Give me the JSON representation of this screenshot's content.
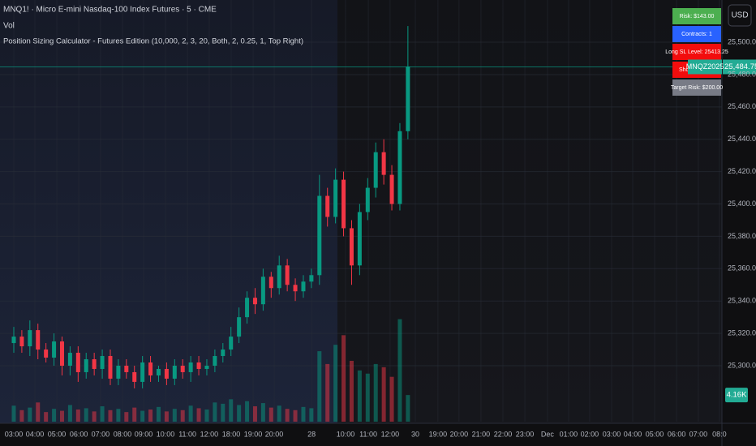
{
  "chart_data": {
    "type": "candlestick",
    "title": "MNQ1! · Micro E-mini Nasdaq-100 Index Futures · 5 · CME",
    "volume_label": "Vol",
    "indicator_label": "Position Sizing Calculator - Futures Edition (10,000, 2, 3, 20, Both, 2, 0.25, 1, Top Right)",
    "currency": "USD",
    "up_color": "#089981",
    "down_color": "#f23645",
    "grid": true,
    "x": [
      0,
      0.37,
      0.74,
      1.11,
      1.48,
      1.85,
      2.22,
      2.59,
      2.96,
      3.33,
      3.7,
      4.07,
      4.44,
      4.81,
      5.18,
      5.55,
      5.92,
      6.29,
      6.66,
      7.03,
      7.4,
      7.77,
      8.14,
      8.51,
      8.88,
      9.25,
      9.62,
      9.99,
      10.36,
      10.73,
      11.1,
      11.47,
      11.84,
      12.21,
      12.58,
      12.95,
      13.32,
      13.69,
      14.06,
      14.43,
      14.8,
      15.17,
      15.54,
      15.91,
      16.28,
      16.65,
      17.02,
      17.39,
      17.76,
      18.13
    ],
    "open": [
      25314,
      25318,
      25312,
      25322,
      25310,
      25305,
      25315,
      25300,
      25308,
      25296,
      25304,
      25298,
      25306,
      25292,
      25300,
      25296,
      25290,
      25302,
      25294,
      25298,
      25292,
      25300,
      25296,
      25302,
      25298,
      25300,
      25306,
      25310,
      25318,
      25330,
      25342,
      25338,
      25355,
      25348,
      25362,
      25350,
      25346,
      25352,
      25356,
      25405,
      25392,
      25415,
      25385,
      25362,
      25395,
      25410,
      25432,
      25418,
      25400,
      25445
    ],
    "high": [
      25324,
      25322,
      25328,
      25326,
      25314,
      25320,
      25318,
      25312,
      25312,
      25308,
      25308,
      25310,
      25310,
      25304,
      25304,
      25300,
      25306,
      25306,
      25300,
      25302,
      25304,
      25304,
      25306,
      25306,
      25304,
      25310,
      25314,
      25324,
      25336,
      25346,
      25348,
      25360,
      25358,
      25368,
      25366,
      25354,
      25356,
      25360,
      25418,
      25410,
      25422,
      25420,
      25390,
      25400,
      25416,
      25438,
      25440,
      25424,
      25450,
      25510
    ],
    "low": [
      25308,
      25308,
      25306,
      25304,
      25302,
      25300,
      25294,
      25294,
      25290,
      25292,
      25294,
      25292,
      25288,
      25288,
      25292,
      25286,
      25286,
      25290,
      25290,
      25288,
      25288,
      25292,
      25290,
      25294,
      25294,
      25296,
      25302,
      25306,
      25314,
      25326,
      25332,
      25334,
      25342,
      25344,
      25346,
      25340,
      25342,
      25348,
      25350,
      25386,
      25388,
      25380,
      25350,
      25356,
      25390,
      25404,
      25412,
      25396,
      25396,
      25440
    ],
    "close": [
      25318,
      25312,
      25322,
      25310,
      25305,
      25315,
      25300,
      25308,
      25296,
      25304,
      25298,
      25306,
      25292,
      25300,
      25296,
      25290,
      25302,
      25294,
      25298,
      25292,
      25300,
      25296,
      25302,
      25298,
      25300,
      25306,
      25310,
      25318,
      25330,
      25342,
      25338,
      25355,
      25348,
      25362,
      25350,
      25346,
      25352,
      25356,
      25405,
      25392,
      25415,
      25385,
      25362,
      25395,
      25410,
      25432,
      25418,
      25400,
      25445,
      25485
    ],
    "volume": [
      2500,
      1800,
      2200,
      3000,
      1500,
      2000,
      1700,
      2600,
      1900,
      2100,
      1600,
      2400,
      1800,
      2000,
      1500,
      2200,
      1700,
      1900,
      2300,
      1600,
      2000,
      1800,
      2500,
      2100,
      1900,
      3000,
      2800,
      3500,
      2600,
      3200,
      2400,
      2900,
      2200,
      2500,
      2000,
      1800,
      2300,
      2100,
      11000,
      9000,
      12000,
      13500,
      9500,
      8000,
      7500,
      9000,
      8500,
      7000,
      16000,
      4160
    ],
    "last_volume_label": "4.16K",
    "vlim": [
      0,
      40000
    ],
    "xlim": [
      -0.634,
      32.575
    ],
    "xticks": [
      {
        "value": 0,
        "label": "03:00"
      },
      {
        "value": 0.97,
        "label": "04:00"
      },
      {
        "value": 1.98,
        "label": "05:00"
      },
      {
        "value": 2.99,
        "label": "06:00"
      },
      {
        "value": 3.99,
        "label": "07:00"
      },
      {
        "value": 5,
        "label": "08:00"
      },
      {
        "value": 5.97,
        "label": "09:00"
      },
      {
        "value": 6.98,
        "label": "10:00"
      },
      {
        "value": 7.99,
        "label": "11:00"
      },
      {
        "value": 8.99,
        "label": "12:00"
      },
      {
        "value": 10,
        "label": "18:00"
      },
      {
        "value": 11.01,
        "label": "19:00"
      },
      {
        "value": 11.98,
        "label": "20:00"
      },
      {
        "value": 13.7,
        "label": "28"
      },
      {
        "value": 15.26,
        "label": "10:00"
      },
      {
        "value": 16.31,
        "label": "11:00"
      },
      {
        "value": 17.31,
        "label": "12:00"
      },
      {
        "value": 18.47,
        "label": "30"
      },
      {
        "value": 19.51,
        "label": "19:00"
      },
      {
        "value": 20.48,
        "label": "20:00"
      },
      {
        "value": 21.49,
        "label": "21:00"
      },
      {
        "value": 22.5,
        "label": "22:00"
      },
      {
        "value": 23.51,
        "label": "23:00"
      },
      {
        "value": 24.55,
        "label": "Dec"
      },
      {
        "value": 25.52,
        "label": "01:00"
      },
      {
        "value": 26.49,
        "label": "02:00"
      },
      {
        "value": 27.5,
        "label": "03:00"
      },
      {
        "value": 28.47,
        "label": "04:00"
      },
      {
        "value": 29.48,
        "label": "05:00"
      },
      {
        "value": 30.49,
        "label": "06:00"
      },
      {
        "value": 31.49,
        "label": "07:00"
      },
      {
        "value": 32.46,
        "label": "08:0"
      }
    ],
    "ylim": [
      25265.4,
      25526.1
    ],
    "yticks": [
      {
        "value": 25300,
        "label": "25,300.00"
      },
      {
        "value": 25320,
        "label": "25,320.00"
      },
      {
        "value": 25340,
        "label": "25,340.00"
      },
      {
        "value": 25360,
        "label": "25,360.00"
      },
      {
        "value": 25380,
        "label": "25,380.00"
      },
      {
        "value": 25400,
        "label": "25,400.00"
      },
      {
        "value": 25420,
        "label": "25,420.00"
      },
      {
        "value": 25440,
        "label": "25,440.00"
      },
      {
        "value": 25460,
        "label": "25,460.00"
      },
      {
        "value": 25480,
        "label": "25,480.00"
      },
      {
        "value": 25500,
        "label": "25,500.00"
      }
    ],
    "last_price": {
      "value": 25484.75,
      "label": "25,484.75"
    },
    "symbol_label": "MNQZ2025",
    "table": [
      {
        "text": "Risk: $143.00",
        "color": "#4caf50"
      },
      {
        "text": "Contracts: 1",
        "color": "#2962ff"
      },
      {
        "text": "Long SL Level: 25413.25",
        "color": "#f20d0d"
      },
      {
        "text": "Short SL Leve",
        "color": "#f20d0d"
      },
      {
        "text": "Target Risk: $200.00",
        "color": "#787b86"
      }
    ]
  }
}
